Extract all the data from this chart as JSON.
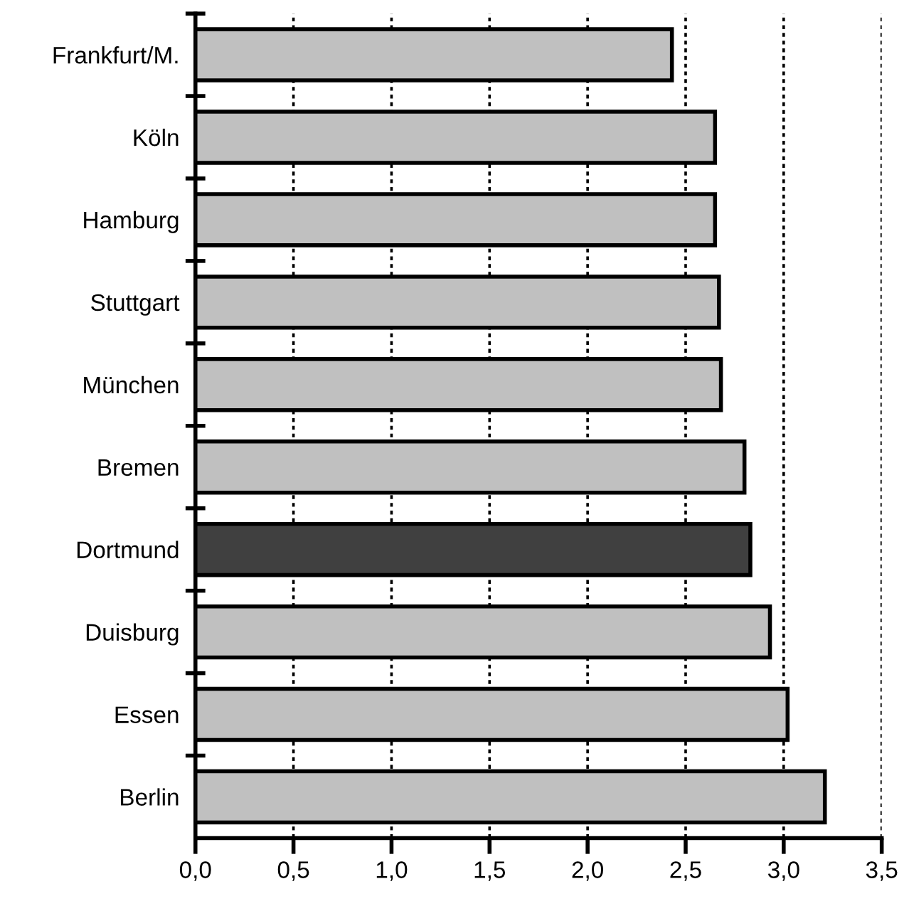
{
  "chart_data": {
    "type": "bar",
    "orientation": "horizontal",
    "categories": [
      "Frankfurt/M.",
      "Köln",
      "Hamburg",
      "Stuttgart",
      "München",
      "Bremen",
      "Dortmund",
      "Duisburg",
      "Essen",
      "Berlin"
    ],
    "values": [
      2.43,
      2.65,
      2.65,
      2.67,
      2.68,
      2.8,
      2.83,
      2.93,
      3.02,
      3.21
    ],
    "colors": [
      "#c0c0c0",
      "#c0c0c0",
      "#c0c0c0",
      "#c0c0c0",
      "#c0c0c0",
      "#c0c0c0",
      "#404040",
      "#c0c0c0",
      "#c0c0c0",
      "#c0c0c0"
    ],
    "xlim": [
      0,
      3.5
    ],
    "xticks": [
      {
        "value": 0,
        "label": "0,0"
      },
      {
        "value": 0.5,
        "label": "0,5"
      },
      {
        "value": 1,
        "label": "1,0"
      },
      {
        "value": 1.5,
        "label": "1,5"
      },
      {
        "value": 2,
        "label": "2,0"
      },
      {
        "value": 2.5,
        "label": "2,5"
      },
      {
        "value": 3,
        "label": "3,0"
      },
      {
        "value": 3.5,
        "label": "3,5"
      }
    ],
    "grid": "x"
  }
}
